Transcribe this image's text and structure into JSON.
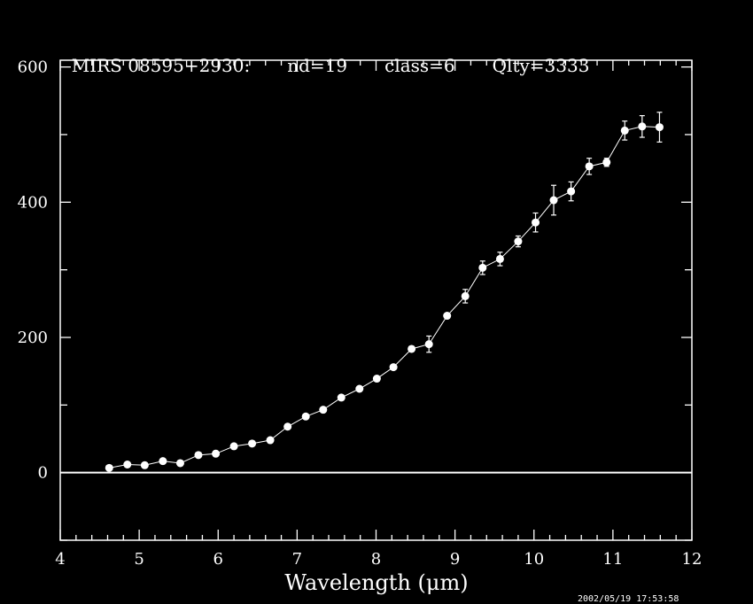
{
  "chart_data": {
    "type": "line",
    "title_parts": [
      "MIRS 08595+2930:",
      "nd=19",
      "class=6",
      "Qlty=3333"
    ],
    "xlabel": "Wavelength (μm)",
    "ylabel": "",
    "xlim": [
      4,
      12
    ],
    "ylim": [
      -100,
      610
    ],
    "xticks": [
      4,
      5,
      6,
      7,
      8,
      9,
      10,
      11,
      12
    ],
    "yticks": [
      0,
      200,
      400,
      600
    ],
    "zero_line": true,
    "series": [
      {
        "x": [
          4.62,
          4.85,
          5.07,
          5.3,
          5.52,
          5.75,
          5.97,
          6.2,
          6.43,
          6.66,
          6.88,
          7.11,
          7.33,
          7.56,
          7.79,
          8.01,
          8.22,
          8.45,
          8.67,
          8.9,
          9.13,
          9.35,
          9.57,
          9.8,
          10.02,
          10.25,
          10.47,
          10.7,
          10.92,
          11.15,
          11.37,
          11.59
        ],
        "y": [
          7,
          12,
          11,
          17,
          14,
          26,
          28,
          39,
          43,
          48,
          68,
          83,
          93,
          111,
          124,
          139,
          156,
          183,
          190,
          232,
          261,
          303,
          316,
          342,
          370,
          403,
          416,
          453,
          459,
          506,
          512,
          511
        ],
        "err": [
          0,
          0,
          0,
          0,
          0,
          0,
          0,
          0,
          0,
          0,
          0,
          0,
          0,
          0,
          0,
          0,
          0,
          0,
          12,
          0,
          10,
          10,
          10,
          8,
          14,
          22,
          14,
          12,
          6,
          14,
          16,
          22
        ]
      }
    ]
  },
  "timestamp": "2002/05/19 17:53:58"
}
